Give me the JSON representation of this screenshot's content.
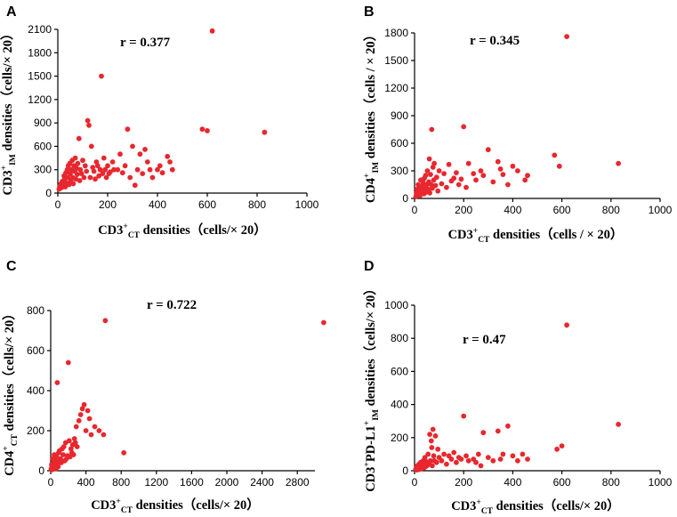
{
  "colors": {
    "point": "#e8272e",
    "axis": "#000000"
  },
  "chart_data": [
    {
      "panel": "A",
      "type": "scatter",
      "r_label": "r = 0.377",
      "xlabel": {
        "main": "CD3",
        "sup": "+",
        "sub": "CT",
        "rest": " densities（cells/× 20）"
      },
      "ylabel": {
        "main": "CD3",
        "sup": "+",
        "sub": "IM",
        "rest": " densities（cells/× 20）"
      },
      "xlim": [
        0,
        1000
      ],
      "ylim": [
        0,
        2100
      ],
      "xticks": [
        "0",
        "200",
        "400",
        "600",
        "800",
        "1000"
      ],
      "yticks": [
        "0",
        "300",
        "600",
        "900",
        "1200",
        "1500",
        "1800",
        "2100"
      ],
      "x": [
        5,
        8,
        12,
        15,
        18,
        20,
        25,
        28,
        30,
        32,
        35,
        38,
        40,
        42,
        45,
        48,
        50,
        52,
        55,
        58,
        60,
        62,
        65,
        68,
        70,
        72,
        75,
        78,
        80,
        85,
        88,
        90,
        95,
        100,
        105,
        110,
        115,
        120,
        125,
        130,
        135,
        140,
        145,
        150,
        155,
        160,
        165,
        170,
        175,
        180,
        185,
        190,
        195,
        200,
        205,
        210,
        220,
        225,
        240,
        250,
        260,
        270,
        280,
        290,
        300,
        310,
        320,
        330,
        340,
        350,
        360,
        370,
        380,
        400,
        410,
        420,
        440,
        450,
        460,
        580,
        600,
        620,
        830
      ],
      "y": [
        50,
        90,
        120,
        70,
        150,
        100,
        220,
        180,
        80,
        260,
        130,
        300,
        200,
        350,
        110,
        380,
        250,
        160,
        300,
        420,
        200,
        120,
        350,
        280,
        450,
        180,
        320,
        240,
        380,
        700,
        160,
        300,
        250,
        420,
        200,
        350,
        280,
        930,
        870,
        200,
        600,
        330,
        280,
        180,
        400,
        350,
        220,
        300,
        1500,
        250,
        450,
        300,
        200,
        350,
        250,
        270,
        400,
        300,
        300,
        500,
        260,
        350,
        820,
        200,
        600,
        100,
        300,
        500,
        250,
        560,
        400,
        300,
        200,
        300,
        350,
        260,
        470,
        400,
        300,
        820,
        800,
        2080,
        780
      ]
    },
    {
      "panel": "B",
      "type": "scatter",
      "r_label": "r = 0.345",
      "xlabel": {
        "main": "CD3",
        "sup": "+",
        "sub": "CT",
        "rest": " densities（cells / × 20）"
      },
      "ylabel": {
        "main": "CD4",
        "sup": "+",
        "sub": "IM",
        "rest": " densities（cells / × 20）"
      },
      "xlim": [
        0,
        1000
      ],
      "ylim": [
        0,
        1800
      ],
      "xticks": [
        "0",
        "200",
        "400",
        "600",
        "800",
        "1000"
      ],
      "yticks": [
        "0",
        "300",
        "600",
        "900",
        "1200",
        "1500",
        "1800"
      ],
      "x": [
        5,
        8,
        10,
        12,
        15,
        18,
        20,
        22,
        25,
        28,
        30,
        32,
        35,
        38,
        40,
        42,
        45,
        48,
        50,
        52,
        55,
        58,
        60,
        62,
        65,
        68,
        70,
        72,
        75,
        78,
        80,
        85,
        90,
        95,
        100,
        110,
        120,
        130,
        140,
        150,
        160,
        170,
        180,
        190,
        200,
        210,
        220,
        240,
        250,
        270,
        280,
        300,
        320,
        340,
        350,
        360,
        380,
        400,
        420,
        450,
        460,
        570,
        590,
        620,
        830
      ],
      "y": [
        20,
        60,
        100,
        40,
        150,
        80,
        120,
        30,
        200,
        60,
        130,
        90,
        170,
        50,
        220,
        110,
        250,
        70,
        150,
        300,
        100,
        180,
        430,
        60,
        260,
        150,
        750,
        110,
        340,
        200,
        380,
        140,
        230,
        80,
        300,
        160,
        270,
        120,
        370,
        190,
        220,
        280,
        150,
        210,
        780,
        120,
        380,
        270,
        200,
        300,
        250,
        530,
        180,
        400,
        320,
        260,
        150,
        350,
        300,
        200,
        250,
        470,
        350,
        1760,
        380
      ]
    },
    {
      "panel": "C",
      "type": "scatter",
      "r_label": "r = 0.722",
      "xlabel": {
        "main": "CD3",
        "sup": "+",
        "sub": "CT",
        "rest": " densities（cells/× 20）"
      },
      "ylabel": {
        "main": "CD4",
        "sup": "+",
        "sub": "CT",
        "rest": " densities（cells/× 20）"
      },
      "xlim": [
        0,
        3000
      ],
      "ylim": [
        0,
        800
      ],
      "xticks": [
        "0",
        "400",
        "800",
        "1200",
        "1600",
        "2000",
        "2400",
        "2800"
      ],
      "yticks": [
        "0",
        "200",
        "400",
        "600",
        "800"
      ],
      "x": [
        5,
        10,
        15,
        20,
        25,
        30,
        35,
        40,
        45,
        50,
        55,
        60,
        65,
        70,
        75,
        80,
        85,
        90,
        95,
        100,
        110,
        120,
        130,
        140,
        150,
        160,
        170,
        180,
        190,
        200,
        210,
        220,
        230,
        240,
        250,
        260,
        270,
        280,
        290,
        300,
        320,
        340,
        360,
        380,
        400,
        420,
        440,
        460,
        500,
        550,
        600,
        620,
        830,
        3100
      ],
      "y": [
        10,
        30,
        5,
        60,
        20,
        40,
        15,
        80,
        25,
        50,
        35,
        10,
        70,
        30,
        440,
        45,
        20,
        90,
        55,
        100,
        60,
        40,
        110,
        80,
        120,
        50,
        140,
        60,
        75,
        540,
        150,
        70,
        110,
        90,
        130,
        80,
        160,
        140,
        220,
        120,
        250,
        280,
        310,
        330,
        200,
        300,
        260,
        180,
        220,
        200,
        180,
        750,
        90,
        740
      ]
    },
    {
      "panel": "D",
      "type": "scatter",
      "r_label": "r = 0.47",
      "xlabel": {
        "main": "CD3",
        "sup": "+",
        "sub": "CT",
        "rest": " densities（cells/× 20）"
      },
      "ylabel": {
        "main": "CD3",
        "sup": "+",
        "mid": "PD-L1",
        "sup2": "+",
        "sub": "IM",
        "rest": " densities（cells/× 20）"
      },
      "xlim": [
        0,
        1000
      ],
      "ylim": [
        0,
        1000
      ],
      "xticks": [
        "0",
        "200",
        "400",
        "600",
        "800",
        "1000"
      ],
      "yticks": [
        "0",
        "200",
        "400",
        "600",
        "800",
        "1000"
      ],
      "x": [
        5,
        8,
        10,
        12,
        15,
        18,
        20,
        22,
        25,
        28,
        30,
        32,
        35,
        38,
        40,
        42,
        45,
        48,
        50,
        55,
        60,
        62,
        65,
        68,
        70,
        72,
        75,
        78,
        80,
        85,
        90,
        95,
        100,
        110,
        120,
        130,
        140,
        150,
        160,
        170,
        180,
        190,
        200,
        210,
        220,
        240,
        250,
        260,
        270,
        280,
        300,
        320,
        340,
        350,
        360,
        380,
        400,
        420,
        440,
        460,
        580,
        600,
        620,
        830
      ],
      "y": [
        10,
        20,
        5,
        30,
        15,
        40,
        8,
        25,
        50,
        12,
        35,
        20,
        60,
        18,
        45,
        80,
        25,
        55,
        30,
        100,
        40,
        220,
        60,
        180,
        140,
        30,
        250,
        90,
        60,
        210,
        50,
        130,
        80,
        60,
        100,
        40,
        90,
        70,
        110,
        50,
        80,
        70,
        330,
        90,
        60,
        70,
        50,
        100,
        30,
        230,
        80,
        60,
        240,
        70,
        100,
        270,
        90,
        60,
        100,
        70,
        130,
        150,
        880,
        280
      ]
    }
  ]
}
